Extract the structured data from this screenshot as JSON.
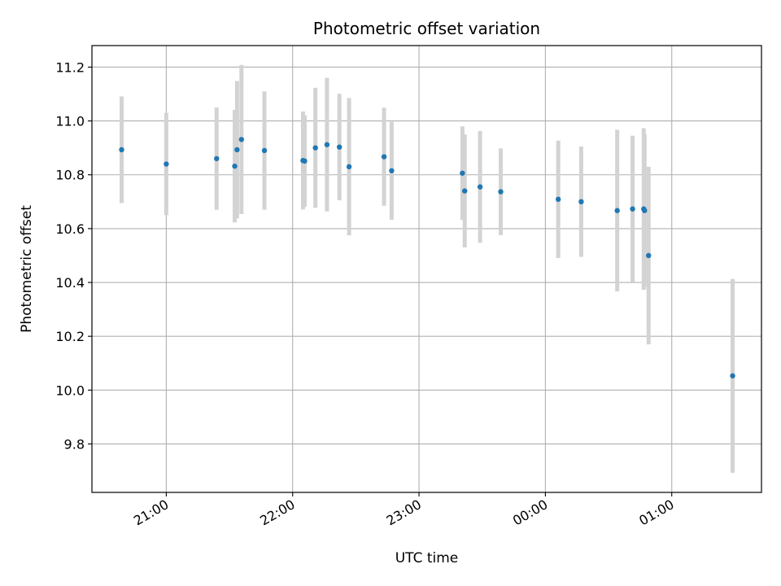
{
  "chart_data": {
    "type": "scatter",
    "title": "Photometric offset variation",
    "xlabel": "UTC time",
    "ylabel": "Photometric offset",
    "x_tick_labels": [
      "21:00",
      "22:00",
      "23:00",
      "00:00",
      "01:00"
    ],
    "x_tick_minutes": [
      0,
      60,
      120,
      180,
      240
    ],
    "x_range_minutes": [
      -35.3,
      282.6
    ],
    "y_ticks": [
      9.8,
      10.0,
      10.2,
      10.4,
      10.6,
      10.8,
      11.0,
      11.2
    ],
    "y_tick_labels": [
      "9.8",
      "10.0",
      "10.2",
      "10.4",
      "10.6",
      "10.8",
      "11.0",
      "11.2"
    ],
    "ylim": [
      9.62,
      11.28
    ],
    "grid": true,
    "errorbar_color": "#d3d3d3",
    "marker_color": "#1f77b4",
    "points": [
      {
        "t": -21.2,
        "y": 10.893,
        "err": 0.198
      },
      {
        "t": 0.0,
        "y": 10.84,
        "err": 0.19
      },
      {
        "t": 23.9,
        "y": 10.86,
        "err": 0.19
      },
      {
        "t": 32.5,
        "y": 10.832,
        "err": 0.209
      },
      {
        "t": 33.6,
        "y": 10.893,
        "err": 0.255
      },
      {
        "t": 35.7,
        "y": 10.931,
        "err": 0.277
      },
      {
        "t": 46.6,
        "y": 10.89,
        "err": 0.22
      },
      {
        "t": 64.9,
        "y": 10.853,
        "err": 0.182
      },
      {
        "t": 65.7,
        "y": 10.851,
        "err": 0.17
      },
      {
        "t": 70.8,
        "y": 10.9,
        "err": 0.223
      },
      {
        "t": 76.3,
        "y": 10.912,
        "err": 0.248
      },
      {
        "t": 82.2,
        "y": 10.903,
        "err": 0.198
      },
      {
        "t": 86.8,
        "y": 10.83,
        "err": 0.255
      },
      {
        "t": 103.4,
        "y": 10.867,
        "err": 0.182
      },
      {
        "t": 107.0,
        "y": 10.815,
        "err": 0.182
      },
      {
        "t": 140.6,
        "y": 10.806,
        "err": 0.174
      },
      {
        "t": 141.7,
        "y": 10.74,
        "err": 0.21
      },
      {
        "t": 149.0,
        "y": 10.755,
        "err": 0.208
      },
      {
        "t": 158.8,
        "y": 10.737,
        "err": 0.161
      },
      {
        "t": 186.1,
        "y": 10.709,
        "err": 0.218
      },
      {
        "t": 197.0,
        "y": 10.7,
        "err": 0.205
      },
      {
        "t": 214.1,
        "y": 10.667,
        "err": 0.3
      },
      {
        "t": 221.4,
        "y": 10.673,
        "err": 0.272
      },
      {
        "t": 226.7,
        "y": 10.673,
        "err": 0.3
      },
      {
        "t": 227.1,
        "y": 10.667,
        "err": 0.283
      },
      {
        "t": 229.0,
        "y": 10.5,
        "err": 0.33
      },
      {
        "t": 268.9,
        "y": 10.053,
        "err": 0.36
      }
    ]
  }
}
